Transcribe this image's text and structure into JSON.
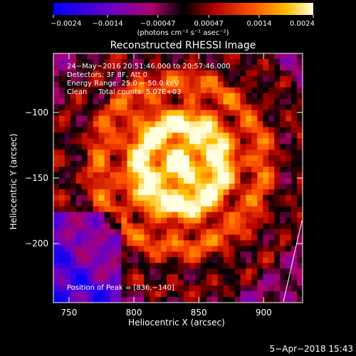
{
  "colorbar": {
    "tick_labels": [
      "−0.0024",
      "−0.0014",
      "−0.00047",
      "0.00047",
      "0.0014",
      "0.0024"
    ],
    "tick_values": [
      -0.0024,
      -0.0014,
      -0.00047,
      0.00047,
      0.0014,
      0.0024
    ],
    "unit_label": "(photons cm⁻² s⁻¹ asec⁻²)"
  },
  "chart_data": {
    "type": "heatmap",
    "title": "Reconstructed RHESSI Image",
    "xlabel": "Heliocentric X (arcsec)",
    "ylabel": "Heliocentric Y (arcsec)",
    "xlim": [
      738,
      930
    ],
    "ylim": [
      -245,
      -55
    ],
    "x_ticks": [
      750,
      800,
      850,
      900
    ],
    "y_ticks": [
      -100,
      -150,
      -200
    ],
    "x_tick_labels": [
      "750",
      "800",
      "850",
      "900"
    ],
    "y_tick_labels": [
      "−100",
      "−150",
      "−200"
    ],
    "value_range": [
      -0.0024,
      0.0024
    ],
    "peak": [
      836,
      -140
    ],
    "annotations": {
      "time": "24−May−2016 20:51:46.000 to 20:57:46.000",
      "detectors": "Detectors: 3F 8F, Att 0",
      "energy": "Energy Range: 25.0 − 50.0 keV",
      "clean": "Clean     Total counts: 5.07E+03",
      "peak": "Position of Peak = [836,−140]"
    }
  },
  "footer": {
    "date": "5−Apr−2018 15:43"
  }
}
